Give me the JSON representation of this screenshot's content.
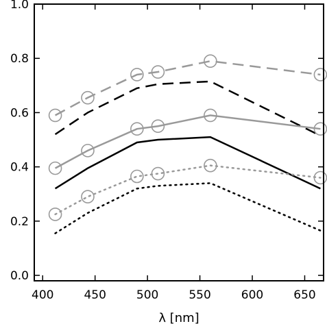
{
  "chart_data": {
    "type": "line",
    "title": "",
    "xlabel": "λ [nm]",
    "ylabel": "",
    "xlim": [
      392,
      668
    ],
    "ylim": [
      -0.02,
      1.0
    ],
    "x_ticks": [
      400,
      450,
      500,
      550,
      600,
      650
    ],
    "x_tick_labels": [
      "400",
      "450",
      "500",
      "550",
      "600",
      "650"
    ],
    "y_ticks": [
      0.0,
      0.2,
      0.4,
      0.6,
      0.8,
      1.0
    ],
    "y_tick_labels": [
      "0.0",
      "0.2",
      "0.4",
      "0.6",
      "0.8",
      "1.0"
    ],
    "grid": false,
    "legend": "none",
    "series": [
      {
        "color": "#999999",
        "dash": "dashed",
        "markers": "circle",
        "x": [
          412,
          443,
          490,
          510,
          560,
          665
        ],
        "values": [
          0.59,
          0.655,
          0.74,
          0.75,
          0.79,
          0.74
        ]
      },
      {
        "color": "#000000",
        "dash": "dashed",
        "markers": "none",
        "x": [
          412,
          443,
          490,
          510,
          560,
          665
        ],
        "values": [
          0.52,
          0.6,
          0.69,
          0.705,
          0.715,
          0.515
        ]
      },
      {
        "color": "#999999",
        "dash": "solid",
        "markers": "circle",
        "x": [
          412,
          443,
          490,
          510,
          560,
          665
        ],
        "values": [
          0.395,
          0.46,
          0.54,
          0.55,
          0.59,
          0.54
        ]
      },
      {
        "color": "#000000",
        "dash": "solid",
        "markers": "none",
        "x": [
          412,
          443,
          490,
          510,
          560,
          665
        ],
        "values": [
          0.32,
          0.395,
          0.49,
          0.5,
          0.51,
          0.32
        ]
      },
      {
        "color": "#999999",
        "dash": "dotted",
        "markers": "circle",
        "x": [
          412,
          443,
          490,
          510,
          560,
          665
        ],
        "values": [
          0.225,
          0.29,
          0.365,
          0.375,
          0.405,
          0.36
        ]
      },
      {
        "color": "#000000",
        "dash": "dotted",
        "markers": "none",
        "x": [
          412,
          443,
          490,
          510,
          560,
          665
        ],
        "values": [
          0.155,
          0.23,
          0.32,
          0.33,
          0.34,
          0.165
        ]
      }
    ]
  }
}
